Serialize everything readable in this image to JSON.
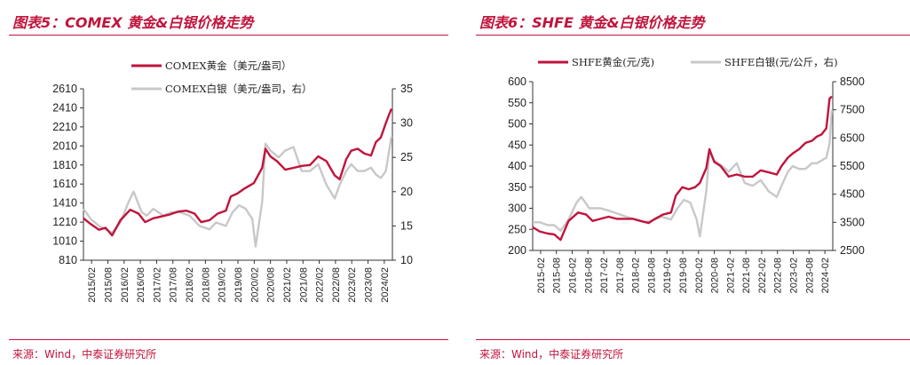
{
  "left": {
    "title": "图表5：COMEX 黄金&白银价格走势",
    "source": "来源：Wind，中泰证券研究所"
  },
  "right": {
    "title": "图表6：SHFE 黄金&白银价格走势",
    "source": "来源：Wind，中泰证券研究所"
  },
  "colors": {
    "primary": "#c0143c",
    "secondary": "#c8c8c8",
    "accent": "#c0143c"
  },
  "chart_data": [
    {
      "type": "line",
      "title": "",
      "x_ticks": [
        "2015/02",
        "2015/08",
        "2016/02",
        "2016/08",
        "2017/02",
        "2017/08",
        "2018/02",
        "2018/08",
        "2019/02",
        "2019/08",
        "2020/02",
        "2020/08",
        "2021/02",
        "2021/08",
        "2022/02",
        "2022/08",
        "2023/02",
        "2023/08",
        "2024/02"
      ],
      "x_range": [
        2015.08,
        2024.45
      ],
      "ylim_left": [
        810,
        2610
      ],
      "yticks_left": [
        810,
        1010,
        1210,
        1410,
        1610,
        1810,
        2010,
        2210,
        2410,
        2610
      ],
      "ylim_right": [
        10,
        35
      ],
      "yticks_right": [
        10,
        15,
        20,
        25,
        30,
        35
      ],
      "legend_position": "top-center",
      "series": [
        {
          "name": "COMEX黄金（美元/盎司）",
          "axis": "left",
          "color": "#c0143c",
          "x": [
            2015.08,
            2015.3,
            2015.55,
            2015.75,
            2015.95,
            2016.2,
            2016.5,
            2016.75,
            2016.95,
            2017.2,
            2017.45,
            2017.7,
            2017.95,
            2018.2,
            2018.45,
            2018.65,
            2018.9,
            2019.15,
            2019.4,
            2019.55,
            2019.75,
            2019.95,
            2020.15,
            2020.25,
            2020.5,
            2020.6,
            2020.75,
            2020.95,
            2021.2,
            2021.45,
            2021.7,
            2021.95,
            2022.2,
            2022.45,
            2022.7,
            2022.85,
            2023.05,
            2023.2,
            2023.4,
            2023.6,
            2023.8,
            2023.95,
            2024.1,
            2024.25,
            2024.35,
            2024.42
          ],
          "y": [
            1250,
            1190,
            1130,
            1150,
            1070,
            1230,
            1340,
            1300,
            1210,
            1250,
            1270,
            1290,
            1320,
            1330,
            1300,
            1210,
            1230,
            1300,
            1330,
            1480,
            1510,
            1560,
            1600,
            1620,
            1780,
            1980,
            1900,
            1850,
            1760,
            1780,
            1800,
            1810,
            1900,
            1850,
            1700,
            1660,
            1870,
            1960,
            1980,
            1930,
            1910,
            2050,
            2100,
            2250,
            2340,
            2400
          ]
        },
        {
          "name": "COMEX白银（美元/盎司，右）",
          "axis": "right",
          "color": "#c8c8c8",
          "x": [
            2015.08,
            2015.3,
            2015.55,
            2015.75,
            2015.95,
            2016.2,
            2016.45,
            2016.6,
            2016.85,
            2017.0,
            2017.2,
            2017.5,
            2017.75,
            2018.0,
            2018.3,
            2018.6,
            2018.9,
            2019.1,
            2019.4,
            2019.6,
            2019.8,
            2020.0,
            2020.2,
            2020.3,
            2020.5,
            2020.6,
            2020.75,
            2021.0,
            2021.2,
            2021.45,
            2021.7,
            2021.95,
            2022.2,
            2022.45,
            2022.7,
            2022.85,
            2023.05,
            2023.2,
            2023.4,
            2023.6,
            2023.8,
            2023.95,
            2024.1,
            2024.25,
            2024.35,
            2024.42
          ],
          "y": [
            17.5,
            16,
            15,
            14.5,
            14,
            15.5,
            18.5,
            20,
            17,
            16.5,
            17.5,
            16.5,
            17,
            17,
            16.5,
            15,
            14.5,
            15.5,
            15,
            17,
            18,
            17.5,
            16,
            12,
            18.5,
            27,
            26,
            25,
            26,
            26.5,
            23,
            23,
            24,
            21,
            19,
            21,
            23,
            24,
            23,
            23,
            23.5,
            22.5,
            22,
            23,
            26,
            28
          ]
        }
      ]
    },
    {
      "type": "line",
      "title": "",
      "x_ticks": [
        "2015-02",
        "2015-08",
        "2016-02",
        "2016-08",
        "2017-02",
        "2017-08",
        "2018-02",
        "2018-08",
        "2019-02",
        "2019-08",
        "2020-02",
        "2020-08",
        "2021-02",
        "2021-08",
        "2022-02",
        "2022-08",
        "2023-02",
        "2023-08",
        "2024-02"
      ],
      "x_range": [
        2015.08,
        2024.45
      ],
      "ylim_left": [
        200,
        600
      ],
      "yticks_left": [
        200,
        250,
        300,
        350,
        400,
        450,
        500,
        550,
        600
      ],
      "ylim_right": [
        2500,
        8500
      ],
      "yticks_right": [
        2500,
        3500,
        4500,
        5500,
        6500,
        7500,
        8500
      ],
      "legend_position": "top-center",
      "series": [
        {
          "name": "SHFE黄金(元/克)",
          "axis": "left",
          "color": "#c0143c",
          "x": [
            2015.08,
            2015.3,
            2015.55,
            2015.75,
            2015.95,
            2016.2,
            2016.5,
            2016.75,
            2016.95,
            2017.2,
            2017.45,
            2017.7,
            2017.95,
            2018.2,
            2018.45,
            2018.7,
            2018.9,
            2019.15,
            2019.4,
            2019.55,
            2019.75,
            2019.95,
            2020.15,
            2020.3,
            2020.5,
            2020.6,
            2020.75,
            2020.95,
            2021.2,
            2021.45,
            2021.7,
            2021.95,
            2022.2,
            2022.45,
            2022.7,
            2022.85,
            2023.05,
            2023.2,
            2023.4,
            2023.6,
            2023.8,
            2023.95,
            2024.1,
            2024.25,
            2024.35,
            2024.42
          ],
          "y": [
            255,
            245,
            240,
            238,
            225,
            270,
            290,
            285,
            270,
            275,
            280,
            275,
            275,
            275,
            270,
            265,
            275,
            285,
            290,
            330,
            350,
            345,
            350,
            360,
            395,
            440,
            410,
            400,
            375,
            380,
            375,
            375,
            390,
            385,
            380,
            400,
            420,
            430,
            440,
            455,
            460,
            470,
            475,
            490,
            560,
            565
          ]
        },
        {
          "name": "SHFE白银(元/公斤，右)",
          "axis": "right",
          "color": "#c8c8c8",
          "x": [
            2015.08,
            2015.3,
            2015.55,
            2015.75,
            2015.95,
            2016.2,
            2016.45,
            2016.6,
            2016.85,
            2017.0,
            2017.2,
            2017.5,
            2017.75,
            2018.0,
            2018.3,
            2018.6,
            2018.9,
            2019.1,
            2019.4,
            2019.6,
            2019.8,
            2020.0,
            2020.2,
            2020.3,
            2020.5,
            2020.6,
            2020.75,
            2021.0,
            2021.2,
            2021.45,
            2021.7,
            2021.95,
            2022.2,
            2022.45,
            2022.7,
            2022.85,
            2023.05,
            2023.2,
            2023.4,
            2023.6,
            2023.8,
            2023.95,
            2024.1,
            2024.25,
            2024.35,
            2024.42
          ],
          "y": [
            3500,
            3500,
            3400,
            3400,
            3200,
            3600,
            4200,
            4400,
            4000,
            4000,
            4000,
            3900,
            3800,
            3700,
            3600,
            3500,
            3600,
            3700,
            3600,
            4000,
            4300,
            4200,
            3600,
            3000,
            4600,
            6000,
            5700,
            5500,
            5300,
            5600,
            4900,
            4800,
            5000,
            4600,
            4400,
            4800,
            5300,
            5500,
            5400,
            5400,
            5600,
            5600,
            5700,
            5800,
            6300,
            7500
          ]
        }
      ]
    }
  ]
}
